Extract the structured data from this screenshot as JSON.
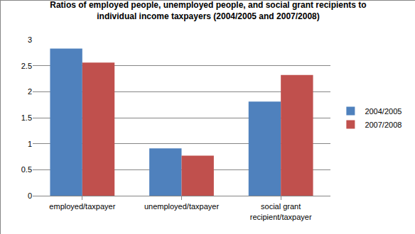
{
  "chart_data": {
    "type": "bar",
    "title": "Ratios of employed people, unemployed people, and social grant recipients to individual income taxpayers (2004/2005 and 2007/2008)",
    "categories": [
      "employed/taxpayer",
      "unemployed/taxpayer",
      "social grant recipient/taxpayer"
    ],
    "series": [
      {
        "name": "2004/2005",
        "color": "#4F81BD",
        "values": [
          2.83,
          0.91,
          1.81
        ]
      },
      {
        "name": "2007/2008",
        "color": "#C0504D",
        "values": [
          2.56,
          0.77,
          2.32
        ]
      }
    ],
    "ylim": [
      0,
      3
    ],
    "yticks": [
      0,
      0.5,
      1,
      1.5,
      2,
      2.5,
      3
    ],
    "grid": true,
    "legend": "right"
  }
}
